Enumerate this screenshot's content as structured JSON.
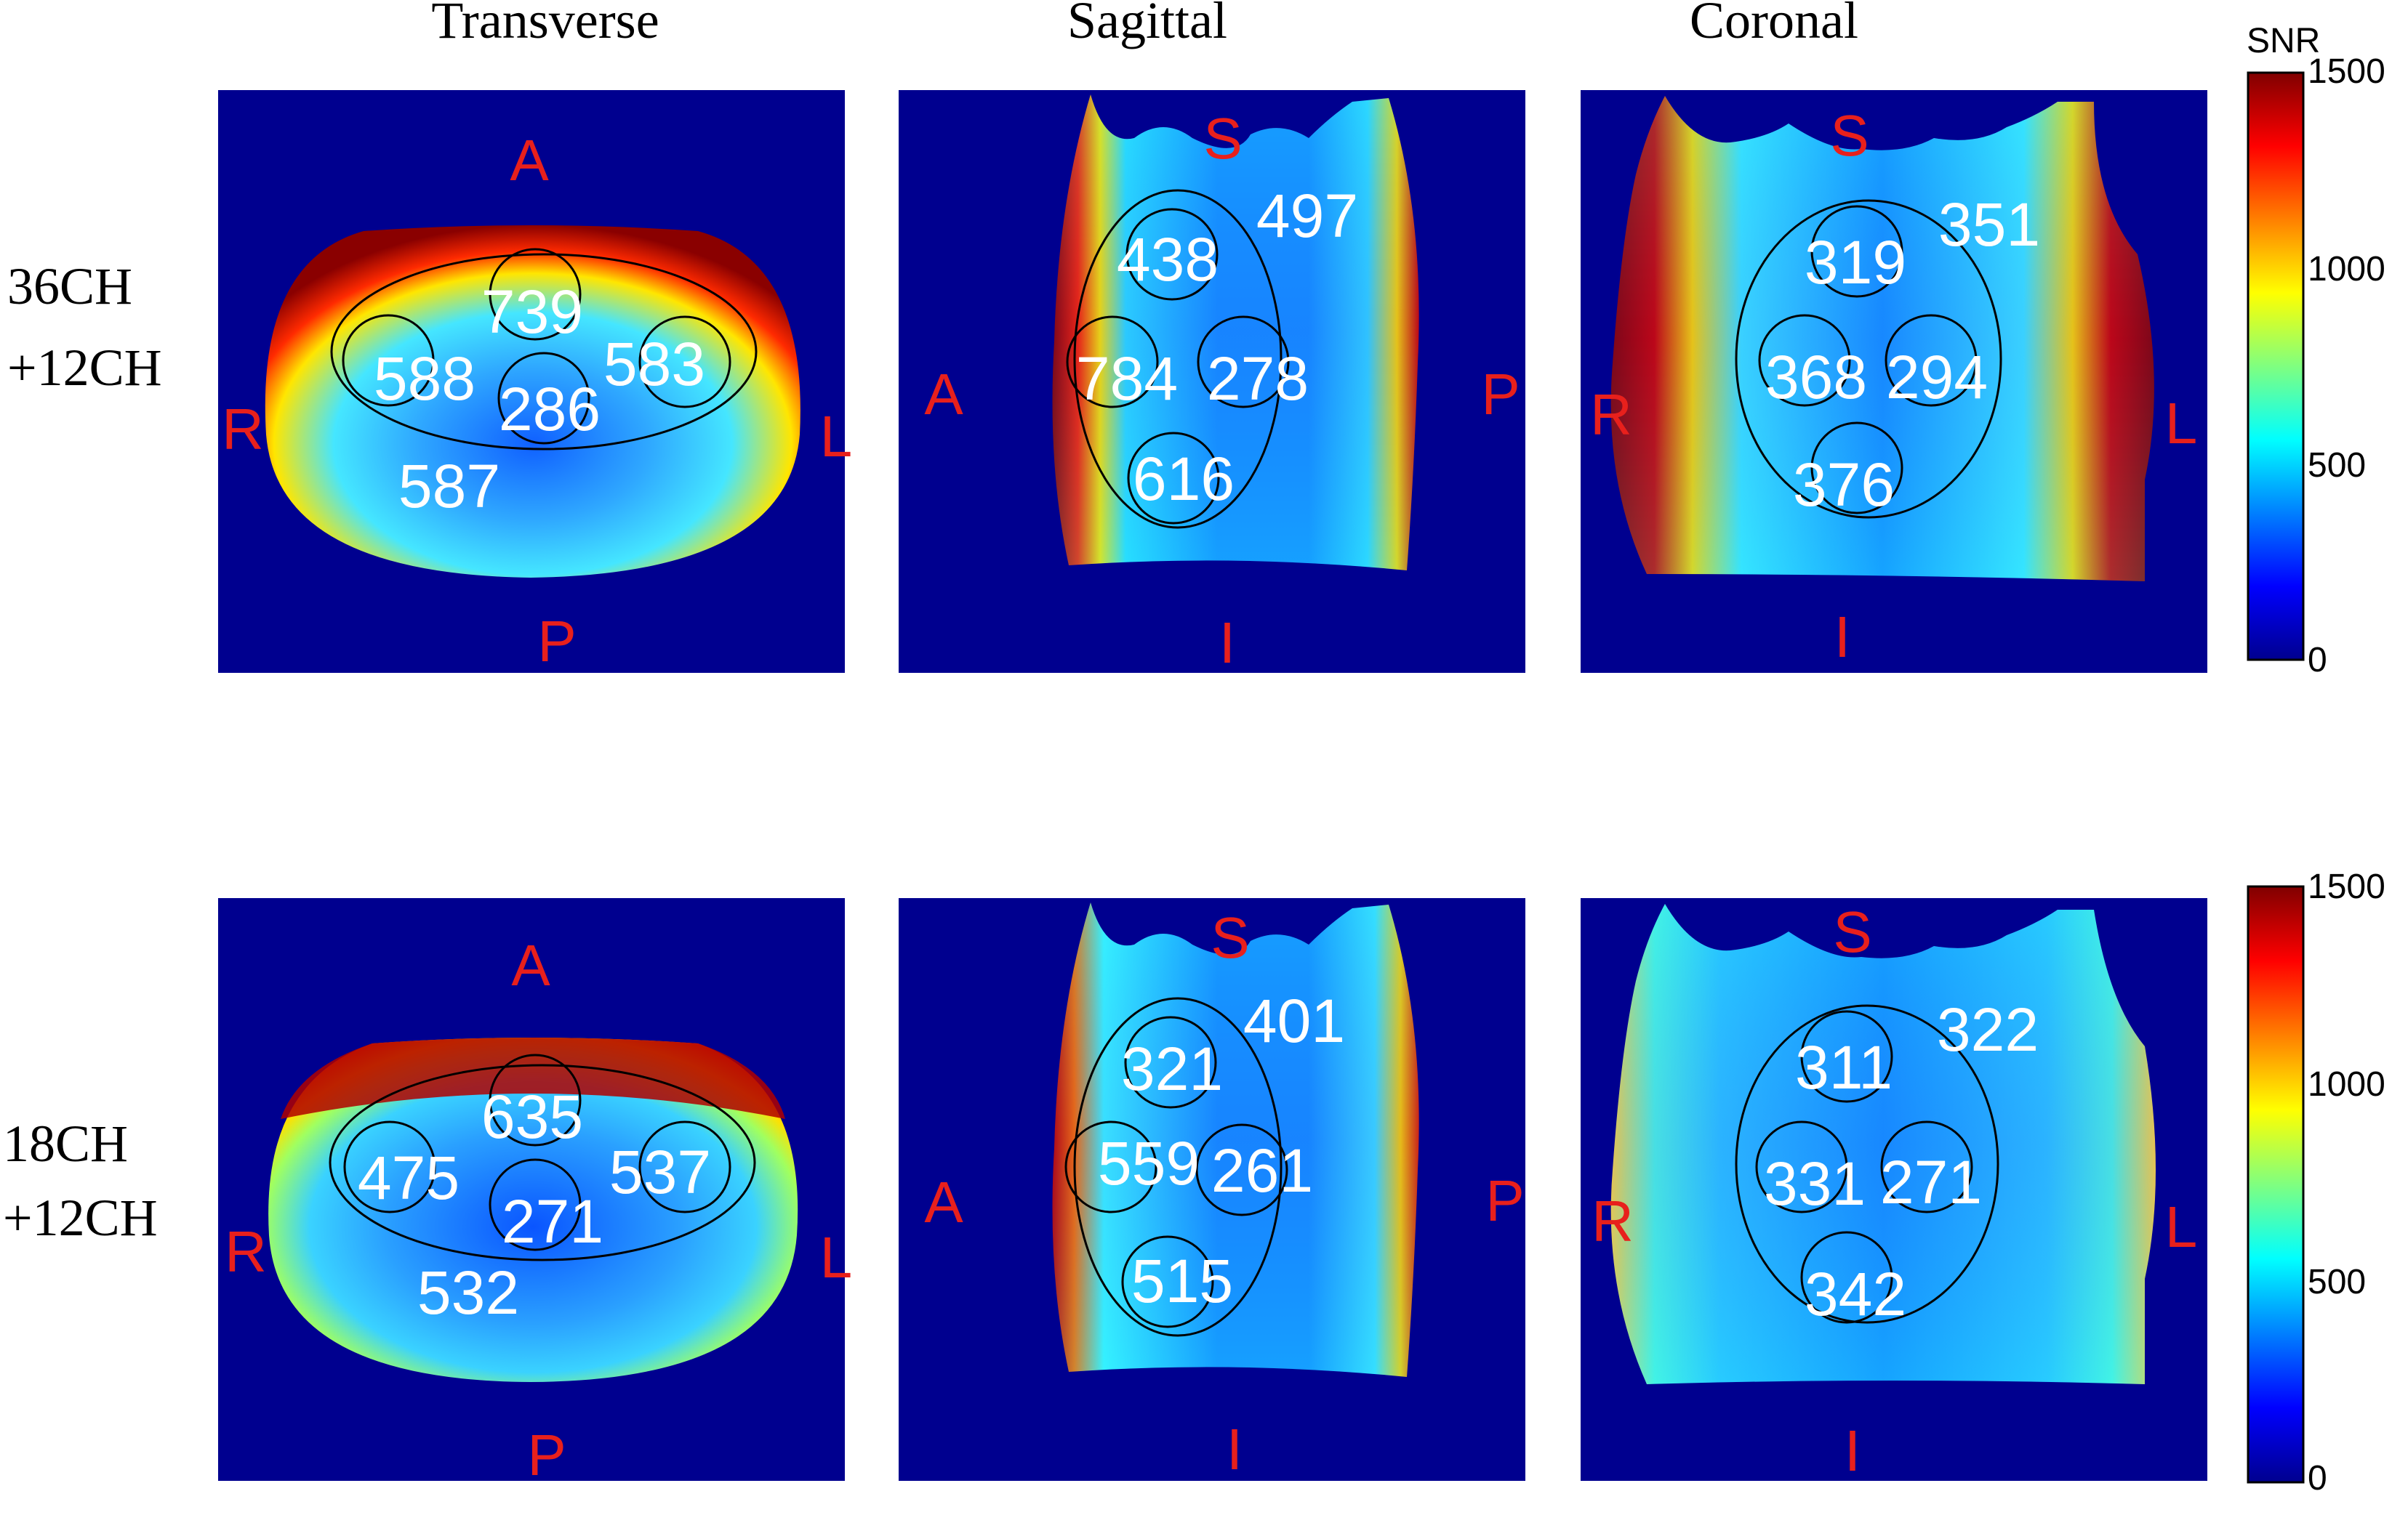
{
  "figure": {
    "columns": [
      "Transverse",
      "Sagittal",
      "Coronal"
    ],
    "colorbar": {
      "label": "SNR",
      "ticks": [
        "1500",
        "1000",
        "500",
        "0"
      ],
      "range": [
        0,
        1500
      ]
    },
    "rows": [
      {
        "label_line1": "36CH",
        "label_line2": "+12CH",
        "panels": [
          {
            "view": "Transverse",
            "orient": {
              "top": "A",
              "bottom": "P",
              "left": "R",
              "right": "L"
            },
            "values": {
              "c_top": "739",
              "c_left": "588",
              "c_center": "286",
              "c_right": "583",
              "c_out": "587"
            }
          },
          {
            "view": "Sagittal",
            "orient": {
              "top": "S",
              "bottom": "I",
              "left": "A",
              "right": "P"
            },
            "values": {
              "c_top": "438",
              "c_left": "784",
              "c_right": "278",
              "c_bottom": "616",
              "c_out": "497"
            }
          },
          {
            "view": "Coronal",
            "orient": {
              "top": "S",
              "bottom": "I",
              "left": "R",
              "right": "L"
            },
            "values": {
              "c_top": "319",
              "c_left": "368",
              "c_right": "294",
              "c_bottom": "376",
              "c_out": "351"
            }
          }
        ]
      },
      {
        "label_line1": "18CH",
        "label_line2": "+12CH",
        "panels": [
          {
            "view": "Transverse",
            "orient": {
              "top": "A",
              "bottom": "P",
              "left": "R",
              "right": "L"
            },
            "values": {
              "c_top": "635",
              "c_left": "475",
              "c_center": "271",
              "c_right": "537",
              "c_out": "532"
            }
          },
          {
            "view": "Sagittal",
            "orient": {
              "top": "S",
              "bottom": "I",
              "left": "A",
              "right": "P"
            },
            "values": {
              "c_top": "321",
              "c_left": "559",
              "c_right": "261",
              "c_bottom": "515",
              "c_out": "401"
            }
          },
          {
            "view": "Coronal",
            "orient": {
              "top": "S",
              "bottom": "I",
              "left": "R",
              "right": "L"
            },
            "values": {
              "c_top": "311",
              "c_left": "331",
              "c_right": "271",
              "c_bottom": "342",
              "c_out": "322"
            }
          }
        ]
      }
    ]
  },
  "colors": {
    "background": "#00008f",
    "orientation": "#e8201c",
    "value_text": "#ffffff",
    "roi_line": "#000000"
  }
}
